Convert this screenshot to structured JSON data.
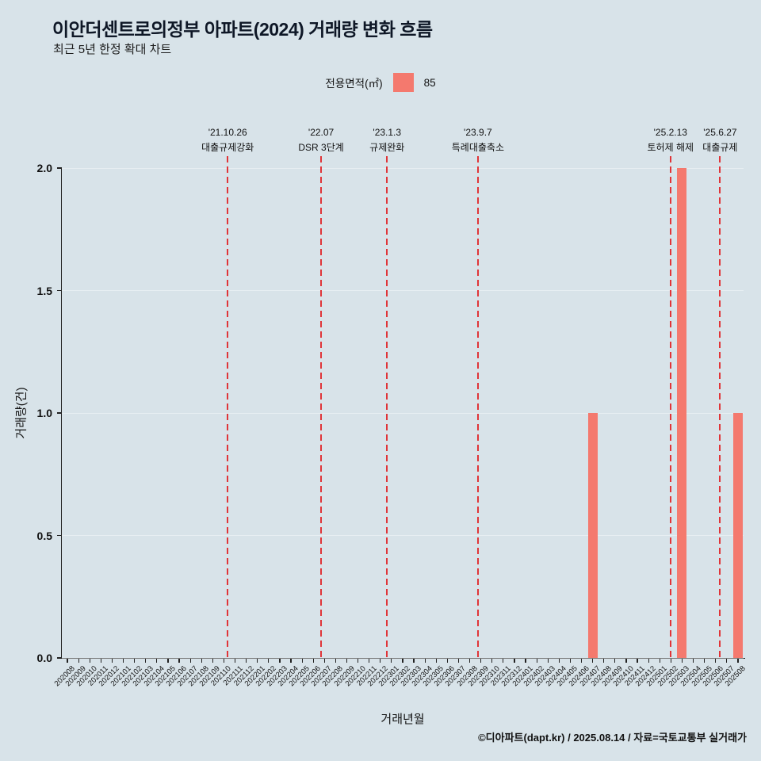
{
  "header": {
    "title": "이안더센트로의정부 아파트(2024) 거래량 변화 흐름",
    "subtitle": "최근 5년 한정 확대 차트"
  },
  "legend": {
    "label": "전용면적(㎡)",
    "value": "85"
  },
  "footer": {
    "credit": "©디아파트(dapt.kr) / 2025.08.14 / 자료=국토교통부 실거래가"
  },
  "chart_data": {
    "type": "bar",
    "title": "이안더센트로의정부 아파트(2024) 거래량 변화 흐름",
    "xlabel": "거래년월",
    "ylabel": "거래량(건)",
    "ylim": [
      0,
      2.0
    ],
    "yticks": [
      0,
      0.5,
      1,
      1.5,
      2
    ],
    "grid": "faint-horizontal",
    "legend_position": "top-center",
    "bar_color": "#f4796e",
    "event_line_color": "#e03438",
    "background_color": "#d8e3e9",
    "categories": [
      "202008",
      "202009",
      "202010",
      "202011",
      "202012",
      "202101",
      "202102",
      "202103",
      "202104",
      "202105",
      "202106",
      "202107",
      "202108",
      "202109",
      "202110",
      "202111",
      "202112",
      "202201",
      "202202",
      "202203",
      "202204",
      "202205",
      "202206",
      "202207",
      "202208",
      "202209",
      "202210",
      "202211",
      "202212",
      "202301",
      "202302",
      "202303",
      "202304",
      "202305",
      "202306",
      "202307",
      "202308",
      "202309",
      "202310",
      "202311",
      "202312",
      "202401",
      "202402",
      "202403",
      "202404",
      "202405",
      "202406",
      "202407",
      "202408",
      "202409",
      "202410",
      "202411",
      "202412",
      "202501",
      "202502",
      "202503",
      "202504",
      "202505",
      "202506",
      "202507",
      "202508"
    ],
    "series": [
      {
        "name": "85",
        "values": [
          0,
          0,
          0,
          0,
          0,
          0,
          0,
          0,
          0,
          0,
          0,
          0,
          0,
          0,
          0,
          0,
          0,
          0,
          0,
          0,
          0,
          0,
          0,
          0,
          0,
          0,
          0,
          0,
          0,
          0,
          0,
          0,
          0,
          0,
          0,
          0,
          0,
          0,
          0,
          0,
          0,
          0,
          0,
          0,
          0,
          0,
          0,
          1,
          0,
          0,
          0,
          0,
          0,
          0,
          0,
          2,
          0,
          0,
          0,
          0,
          1
        ]
      }
    ],
    "annotations": [
      {
        "date": "'21.10.26",
        "label": "대출규제강화",
        "pos": 14.84
      },
      {
        "date": "'22.07",
        "label": "DSR 3단계",
        "pos": 23.2
      },
      {
        "date": "'23.1.3",
        "label": "규제완화",
        "pos": 29.1
      },
      {
        "date": "'23.9.7",
        "label": "특례대출축소",
        "pos": 37.23
      },
      {
        "date": "'25.2.13",
        "label": "토허제 해제",
        "pos": 54.46
      },
      {
        "date": "'25.6.27",
        "label": "대출규제",
        "pos": 58.9
      }
    ]
  }
}
